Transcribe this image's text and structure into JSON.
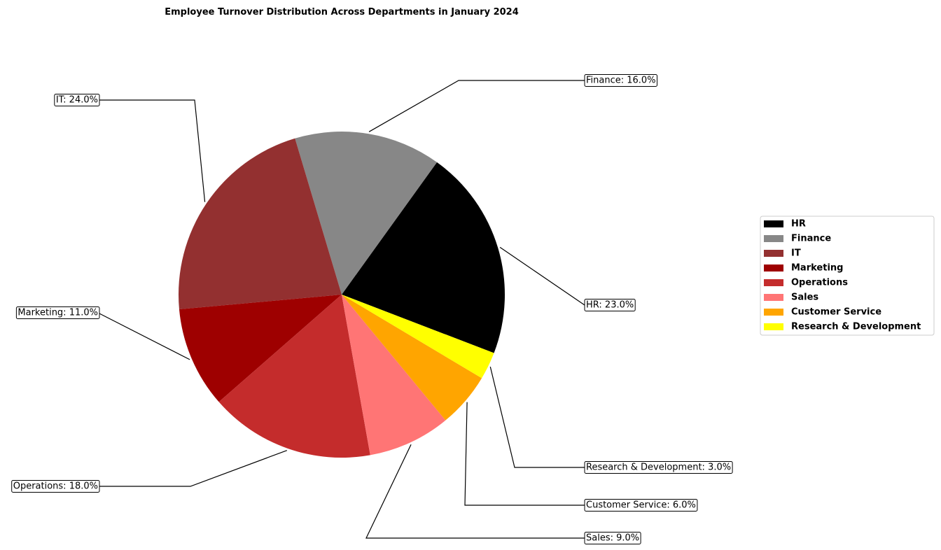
{
  "chart_data": {
    "type": "pie",
    "title": "Employee Turnover Distribution Across Departments in January 2024",
    "legend_position": "right",
    "slices": [
      {
        "label": "HR",
        "value": 23.0,
        "color": "#000000",
        "callout": "HR: 23.0%"
      },
      {
        "label": "Finance",
        "value": 16.0,
        "color": "#878787",
        "callout": "Finance: 16.0%"
      },
      {
        "label": "IT",
        "value": 24.0,
        "color": "#933030",
        "callout": "IT: 24.0%"
      },
      {
        "label": "Marketing",
        "value": 11.0,
        "color": "#9e0000",
        "callout": "Marketing: 11.0%"
      },
      {
        "label": "Operations",
        "value": 18.0,
        "color": "#c42c2c",
        "callout": "Operations: 18.0%"
      },
      {
        "label": "Sales",
        "value": 9.0,
        "color": "#ff7575",
        "callout": "Sales: 9.0%"
      },
      {
        "label": "Customer Service",
        "value": 6.0,
        "color": "#ffa500",
        "callout": "Customer Service: 6.0%"
      },
      {
        "label": "Research & Development",
        "value": 3.0,
        "color": "#ffff00",
        "callout": "Research & Development: 3.0%"
      }
    ]
  }
}
